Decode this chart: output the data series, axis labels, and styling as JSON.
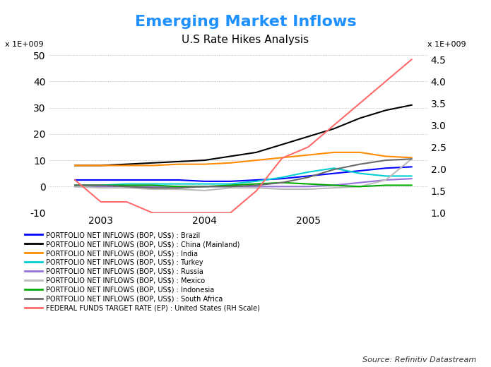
{
  "title": "Emerging Market Inflows",
  "subtitle": "U.S Rate Hikes Analysis",
  "source": "Source: Refinitiv Datastream",
  "ylim_left": [
    -10000000000.0,
    50000000000.0
  ],
  "ylim_right": [
    1.0,
    4.6
  ],
  "yticks_left": [
    -10,
    0,
    10,
    20,
    30,
    40,
    50
  ],
  "yticks_right": [
    1.0,
    1.5,
    2.0,
    2.5,
    3.0,
    3.5,
    4.0,
    4.5
  ],
  "x_dates": [
    2002.75,
    2003.0,
    2003.25,
    2003.5,
    2003.75,
    2004.0,
    2004.25,
    2004.5,
    2004.75,
    2005.0,
    2005.25,
    2005.5,
    2005.75,
    2006.0
  ],
  "series": {
    "Brazil": {
      "color": "#0000FF",
      "values": [
        2500000000.0,
        2500000000.0,
        2500000000.0,
        2500000000.0,
        2500000000.0,
        2000000000.0,
        2000000000.0,
        2500000000.0,
        3000000000.0,
        4000000000.0,
        5000000000.0,
        6000000000.0,
        7000000000.0,
        7500000000.0
      ]
    },
    "China": {
      "color": "#000000",
      "values": [
        8000000000.0,
        8000000000.0,
        8500000000.0,
        9000000000.0,
        9500000000.0,
        10000000000.0,
        11500000000.0,
        13000000000.0,
        16000000000.0,
        19000000000.0,
        22000000000.0,
        26000000000.0,
        29000000000.0,
        31000000000.0
      ]
    },
    "India": {
      "color": "#FF8C00",
      "values": [
        8000000000.0,
        8000000000.0,
        8000000000.0,
        8000000000.0,
        8500000000.0,
        8500000000.0,
        9000000000.0,
        10000000000.0,
        11000000000.0,
        12000000000.0,
        13000000000.0,
        13000000000.0,
        11500000000.0,
        11000000000.0
      ]
    },
    "Turkey": {
      "color": "#00CED1",
      "values": [
        500000000.0,
        500000000.0,
        1000000000.0,
        1000000000.0,
        1000000000.0,
        1000000000.0,
        1000000000.0,
        2000000000.0,
        3500000000.0,
        5500000000.0,
        7000000000.0,
        5000000000.0,
        4000000000.0,
        4000000000.0
      ]
    },
    "Russia": {
      "color": "#9370DB",
      "values": [
        0.0,
        0.0,
        0.0,
        0.0,
        0.0,
        0.0,
        0.0,
        0.0,
        0.0,
        0.0,
        500000000.0,
        1500000000.0,
        2500000000.0,
        3000000000.0
      ]
    },
    "Mexico": {
      "color": "#BBBBBB",
      "values": [
        0.0,
        -500000000.0,
        -500000000.0,
        -1000000000.0,
        -1000000000.0,
        -1500000000.0,
        -500000000.0,
        -500000000.0,
        -1000000000.0,
        -1000000000.0,
        -500000000.0,
        0.0,
        2500000000.0,
        10500000000.0
      ]
    },
    "Indonesia": {
      "color": "#00AA00",
      "values": [
        500000000.0,
        500000000.0,
        500000000.0,
        500000000.0,
        0.0,
        0.0,
        500000000.0,
        1000000000.0,
        1500000000.0,
        1000000000.0,
        500000000.0,
        0.0,
        500000000.0,
        500000000.0
      ]
    },
    "South Africa": {
      "color": "#696969",
      "values": [
        500000000.0,
        500000000.0,
        0.0,
        -500000000.0,
        -500000000.0,
        0.0,
        0.0,
        500000000.0,
        1500000000.0,
        3500000000.0,
        6500000000.0,
        8500000000.0,
        10000000000.0,
        10500000000.0
      ]
    }
  },
  "fed_funds": {
    "color": "#FF6B6B",
    "x_dates": [
      2002.75,
      2003.0,
      2003.25,
      2003.5,
      2003.75,
      2004.0,
      2004.25,
      2004.5,
      2004.75,
      2005.0,
      2005.25,
      2005.5,
      2005.75,
      2006.0
    ],
    "values": [
      1.75,
      1.25,
      1.25,
      1.0,
      1.0,
      1.0,
      1.0,
      1.5,
      2.25,
      2.5,
      3.0,
      3.5,
      4.0,
      4.5
    ]
  },
  "legend_labels": [
    [
      "PORTFOLIO NET INFLOWS (BOP, US$) : Brazil",
      "#0000FF"
    ],
    [
      "PORTFOLIO NET INFLOWS (BOP, US$) : China (Mainland)",
      "#000000"
    ],
    [
      "PORTFOLIO NET INFLOWS (BOP, US$) : India",
      "#FF8C00"
    ],
    [
      "PORTFOLIO NET INFLOWS (BOP, US$) : Turkey",
      "#00CED1"
    ],
    [
      "PORTFOLIO NET INFLOWS (BOP, US$) : Russia",
      "#9370DB"
    ],
    [
      "PORTFOLIO NET INFLOWS (BOP, US$) : Mexico",
      "#BBBBBB"
    ],
    [
      "PORTFOLIO NET INFLOWS (BOP, US$) : Indonesia",
      "#00AA00"
    ],
    [
      "PORTFOLIO NET INFLOWS (BOP, US$) : South Africa",
      "#696969"
    ],
    [
      "FEDERAL FUNDS TARGET RATE (EP) : United States (RH Scale)",
      "#FF6B6B"
    ]
  ],
  "title_color": "#1E90FF",
  "subtitle_color": "#000000",
  "background_color": "#FFFFFF",
  "grid_color": "#AAAAAA"
}
